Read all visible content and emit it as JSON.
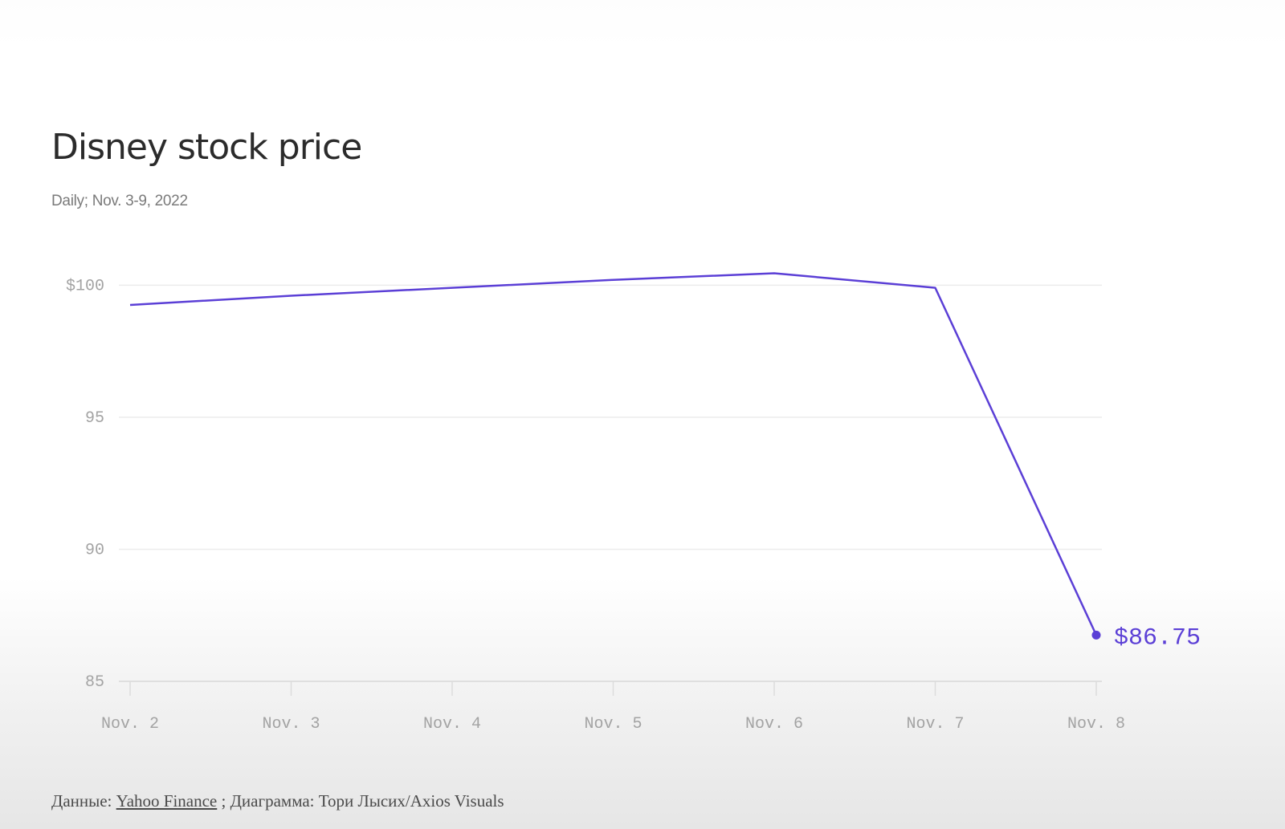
{
  "chart_data": {
    "type": "line",
    "title": "Disney stock price",
    "subtitle": "Daily; Nov. 3-9, 2022",
    "categories": [
      "Nov. 2",
      "Nov. 3",
      "Nov. 4",
      "Nov. 5",
      "Nov. 6",
      "Nov. 7",
      "Nov. 8"
    ],
    "series": [
      {
        "values": [
          99.25,
          99.6,
          99.9,
          100.2,
          100.45,
          99.9,
          86.75
        ]
      }
    ],
    "end_label": "$86.75",
    "y_ticks": [
      100,
      95,
      90,
      85
    ],
    "y_tick_labels": [
      "$100",
      "95",
      "90",
      "85"
    ],
    "ylim": [
      85,
      100.8
    ],
    "xlabel": "",
    "ylabel": "",
    "grid": true,
    "line_color": "#5b3fd6"
  },
  "footer": {
    "data_prefix": "Данные: ",
    "source_link": "Yahoo Finance",
    "credit": " ; Диаграмма: Тори Лысих/Axios Visuals"
  }
}
